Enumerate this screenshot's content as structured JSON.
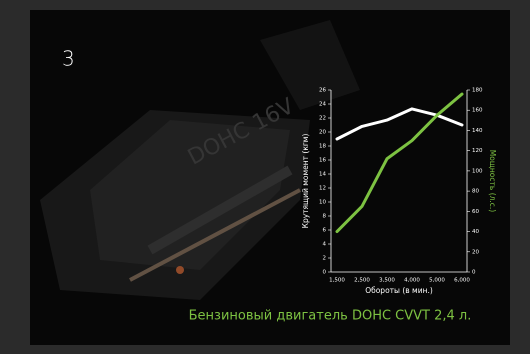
{
  "page_number": "3",
  "caption": "Бензиновый двигатель DOHC CVVT 2,4 л.",
  "chart_data": {
    "type": "line",
    "x_label": "Обороты (в мин.)",
    "y_label": "Крутящий момент (кгм)",
    "y2_label": "Мощность (л.с.)",
    "categories": [
      "1,500",
      "2,500",
      "3,500",
      "4,000",
      "5,000",
      "6,000"
    ],
    "series": [
      {
        "name": "Крутящий момент (кгм)",
        "color": "#ffffff",
        "values": [
          19,
          20.8,
          21.7,
          23.3,
          22.4,
          21
        ]
      },
      {
        "name": "Мощность (л.с.)",
        "color": "#7dc242",
        "axis": "y2",
        "values": [
          40,
          65,
          112,
          130,
          155,
          176
        ]
      }
    ],
    "ylim": [
      0,
      26
    ],
    "yticks": [
      0,
      2,
      4,
      6,
      8,
      10,
      12,
      14,
      16,
      18,
      20,
      22,
      24,
      26
    ],
    "y2lim": [
      0,
      180
    ],
    "y2ticks": [
      0,
      20,
      40,
      60,
      80,
      100,
      120,
      140,
      160,
      180
    ]
  }
}
